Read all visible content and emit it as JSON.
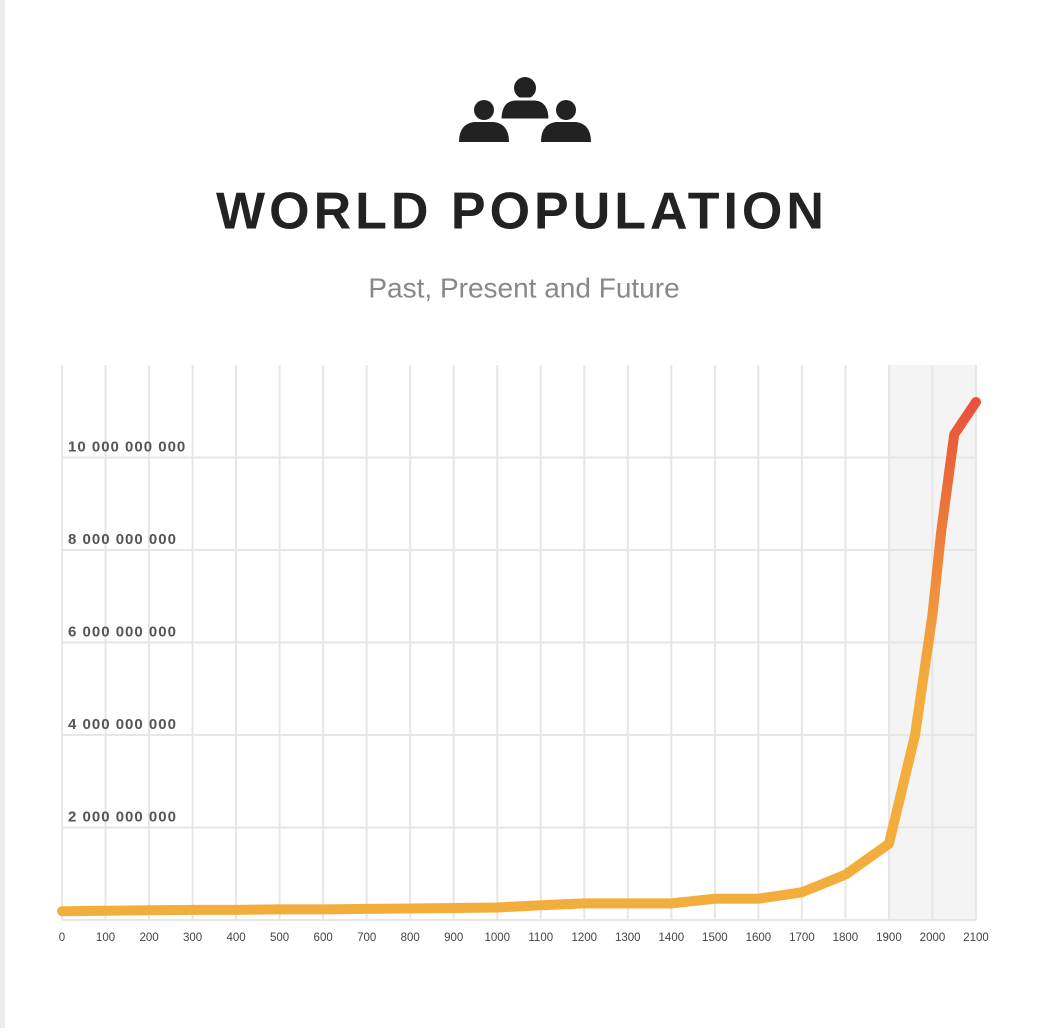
{
  "chart_data": {
    "type": "line",
    "title": "WORLD POPULATION",
    "subtitle": "Past, Present and Future",
    "x": [
      0,
      100,
      200,
      300,
      400,
      500,
      600,
      700,
      800,
      900,
      1000,
      1100,
      1200,
      1300,
      1400,
      1500,
      1600,
      1700,
      1800,
      1900,
      1960,
      2000,
      2020,
      2050,
      2100
    ],
    "values": [
      190000000,
      200000000,
      210000000,
      220000000,
      220000000,
      230000000,
      230000000,
      240000000,
      250000000,
      260000000,
      270000000,
      320000000,
      360000000,
      360000000,
      360000000,
      460000000,
      460000000,
      600000000,
      980000000,
      1650000000,
      4000000000,
      6600000000,
      8400000000,
      10500000000,
      11200000000
    ],
    "xlim": [
      0,
      2100
    ],
    "xticks": [
      0,
      100,
      200,
      300,
      400,
      500,
      600,
      700,
      800,
      900,
      1000,
      1100,
      1200,
      1300,
      1400,
      1500,
      1600,
      1700,
      1800,
      1900,
      2000,
      2100
    ],
    "ylim": [
      0,
      12000000000
    ],
    "yticks": [
      {
        "value": 2000000000,
        "label": "2 000 000 000"
      },
      {
        "value": 4000000000,
        "label": "4 000 000 000"
      },
      {
        "value": 6000000000,
        "label": "6 000 000 000"
      },
      {
        "value": 8000000000,
        "label": "8 000 000 000"
      },
      {
        "value": 10000000000,
        "label": "10 000 000 000"
      }
    ],
    "grid": true,
    "highlight_xrange": [
      1900,
      2100
    ],
    "color_start": "#f3ad3c",
    "color_end": "#e8523a"
  }
}
